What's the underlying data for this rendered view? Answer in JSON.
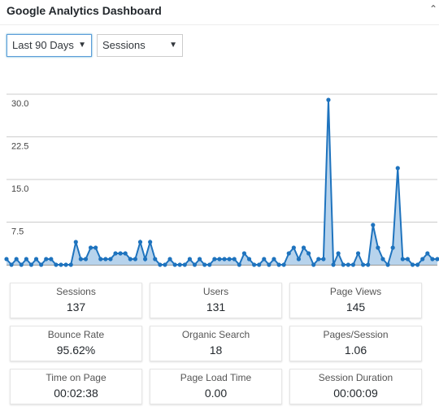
{
  "widget": {
    "title": "Google Analytics Dashboard",
    "toggle_icon": "caret-up-icon"
  },
  "filters": {
    "period": {
      "value": "Last 90 Days",
      "arrow": "▼"
    },
    "metric": {
      "value": "Sessions",
      "arrow": "▼"
    }
  },
  "chart_data": {
    "type": "area",
    "title": "",
    "xlabel": "",
    "ylabel": "",
    "ylim": [
      0,
      32
    ],
    "ytick_labels": [
      "30.0",
      "22.5",
      "15.0",
      "7.5"
    ],
    "grid": true,
    "color": "#1e73be",
    "fill": "#b7d3ec",
    "series": [
      {
        "values": [
          1,
          0,
          1,
          0,
          1,
          0,
          1,
          0,
          1,
          1,
          0,
          0,
          0,
          0,
          4,
          1,
          1,
          3,
          3,
          1,
          1,
          1,
          2,
          2,
          2,
          1,
          1,
          4,
          1,
          4,
          1,
          0,
          0,
          1,
          0,
          0,
          0,
          1,
          0,
          1,
          0,
          0,
          1,
          1,
          1,
          1,
          1,
          0,
          2,
          1,
          0,
          0,
          1,
          0,
          1,
          0,
          0,
          2,
          3,
          1,
          3,
          2,
          0,
          1,
          1,
          29,
          0,
          2,
          0,
          0,
          0,
          2,
          0,
          0,
          7,
          3,
          1,
          0,
          3,
          17,
          1,
          1,
          0,
          0,
          1,
          2,
          1,
          1
        ]
      }
    ]
  },
  "stats": [
    {
      "label": "Sessions",
      "value": "137"
    },
    {
      "label": "Users",
      "value": "131"
    },
    {
      "label": "Page Views",
      "value": "145"
    },
    {
      "label": "Bounce Rate",
      "value": "95.62%"
    },
    {
      "label": "Organic Search",
      "value": "18"
    },
    {
      "label": "Pages/Session",
      "value": "1.06"
    },
    {
      "label": "Time on Page",
      "value": "00:02:38"
    },
    {
      "label": "Page Load Time",
      "value": "0.00"
    },
    {
      "label": "Session Duration",
      "value": "00:00:09"
    }
  ]
}
